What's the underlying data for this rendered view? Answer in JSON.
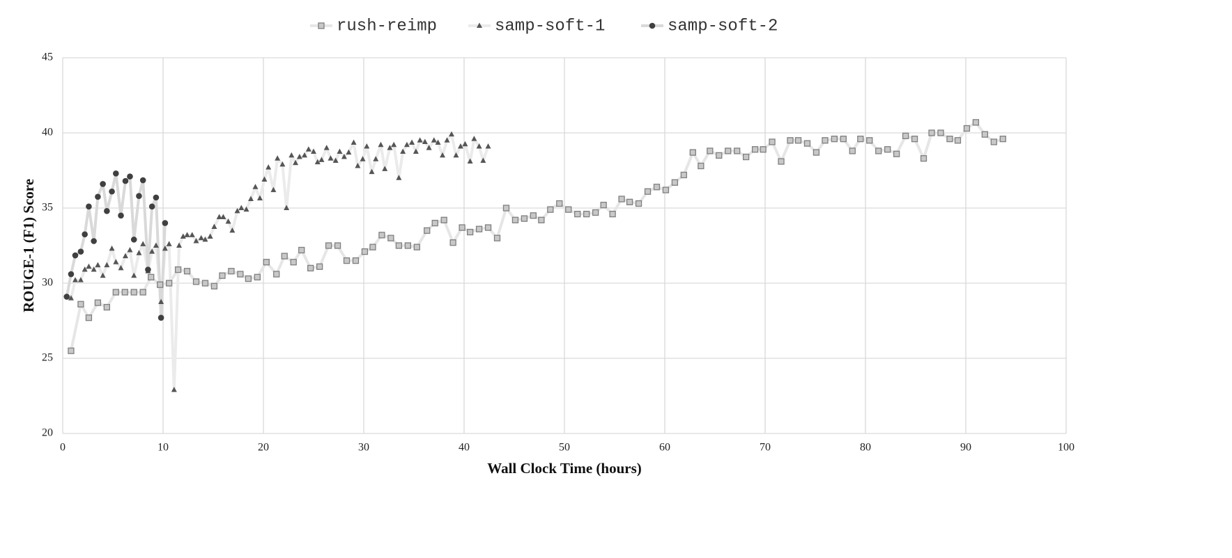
{
  "chart_data": {
    "type": "line",
    "xlabel": "Wall Clock Time (hours)",
    "ylabel": "ROUGE-1 (F1) Score",
    "xlim": [
      0,
      100
    ],
    "xticks": [
      0,
      10,
      20,
      30,
      40,
      50,
      60,
      70,
      80,
      90,
      100
    ],
    "ylim": [
      20,
      45
    ],
    "yticks": [
      20,
      25,
      30,
      35,
      40,
      45
    ],
    "grid": true,
    "legend": "top",
    "series": [
      {
        "name": "rush-reimp",
        "color": "#e6e6e6",
        "marker": "square",
        "marker_color": "#c8c8c8",
        "x": [
          0.83,
          1.8,
          2.6,
          3.5,
          4.4,
          5.3,
          6.2,
          7.1,
          8.0,
          8.8,
          9.7,
          10.6,
          11.5,
          12.4,
          13.3,
          14.2,
          15.1,
          15.9,
          16.8,
          17.7,
          18.5,
          19.4,
          20.3,
          21.3,
          22.1,
          23.0,
          23.8,
          24.7,
          25.6,
          26.5,
          27.4,
          28.3,
          29.2,
          30.1,
          30.9,
          31.8,
          32.7,
          33.5,
          34.4,
          35.3,
          36.3,
          37.1,
          38.0,
          38.9,
          39.8,
          40.6,
          41.5,
          42.4,
          43.3,
          44.2,
          45.1,
          46.0,
          46.9,
          47.7,
          48.6,
          49.5,
          50.4,
          51.3,
          52.2,
          53.1,
          53.9,
          54.8,
          55.7,
          56.5,
          57.4,
          58.3,
          59.2,
          60.1,
          61.0,
          61.9,
          62.8,
          63.6,
          64.5,
          65.4,
          66.3,
          67.2,
          68.1,
          69.0,
          69.8,
          70.7,
          71.6,
          72.5,
          73.3,
          74.2,
          75.1,
          75.97,
          76.9,
          77.8,
          78.7,
          79.5,
          80.4,
          81.3,
          82.2,
          83.1,
          84.0,
          84.9,
          85.8,
          86.6,
          87.5,
          88.4,
          89.2,
          90.1,
          91.0,
          91.9,
          92.8,
          93.7
        ],
        "values": [
          25.5,
          28.6,
          27.7,
          28.7,
          28.4,
          29.4,
          29.4,
          29.4,
          29.4,
          30.4,
          29.9,
          30.0,
          30.9,
          30.8,
          30.1,
          30.0,
          29.8,
          30.5,
          30.8,
          30.6,
          30.3,
          30.4,
          31.4,
          30.6,
          31.8,
          31.4,
          32.2,
          31.0,
          31.1,
          32.5,
          32.5,
          31.5,
          31.5,
          32.1,
          32.4,
          33.2,
          33.0,
          32.5,
          32.5,
          32.4,
          33.5,
          34.0,
          34.2,
          32.7,
          33.7,
          33.4,
          33.6,
          33.7,
          33.0,
          35.0,
          34.2,
          34.3,
          34.5,
          34.2,
          34.9,
          35.3,
          34.9,
          34.6,
          34.6,
          34.7,
          35.2,
          34.6,
          35.6,
          35.4,
          35.3,
          36.1,
          36.4,
          36.2,
          36.7,
          37.2,
          38.7,
          37.8,
          38.8,
          38.5,
          38.8,
          38.8,
          38.4,
          38.9,
          38.9,
          39.4,
          38.1,
          39.5,
          39.5,
          39.3,
          38.7,
          39.5,
          39.6,
          39.6,
          38.8,
          39.6,
          39.5,
          38.8,
          38.9,
          38.6,
          39.8,
          39.6,
          38.3,
          40.0,
          40.0,
          39.6,
          39.5,
          40.3,
          40.7,
          39.9,
          39.4,
          39.6
        ]
      },
      {
        "name": "samp-soft-1",
        "color": "#ebebeb",
        "marker": "triangle",
        "marker_color": "#555555",
        "x": [
          0.83,
          1.25,
          1.8,
          2.2,
          2.6,
          3.1,
          3.5,
          4.0,
          4.4,
          4.9,
          5.3,
          5.8,
          6.25,
          6.7,
          7.1,
          7.6,
          8.0,
          8.5,
          8.9,
          9.3,
          9.8,
          10.2,
          10.6,
          11.1,
          11.6,
          12.0,
          12.4,
          12.9,
          13.3,
          13.8,
          14.2,
          14.7,
          15.1,
          15.6,
          16.0,
          16.5,
          16.9,
          17.4,
          17.8,
          18.3,
          18.75,
          19.2,
          19.65,
          20.1,
          20.5,
          21.0,
          21.4,
          21.9,
          22.3,
          22.8,
          23.2,
          23.6,
          24.1,
          24.5,
          25.0,
          25.4,
          25.8,
          26.3,
          26.7,
          27.2,
          27.6,
          28.05,
          28.5,
          29.0,
          29.4,
          29.9,
          30.3,
          30.8,
          31.2,
          31.7,
          32.1,
          32.6,
          33.0,
          33.5,
          33.9,
          34.3,
          34.8,
          35.2,
          35.6,
          36.1,
          36.5,
          37.0,
          37.4,
          37.85,
          38.3,
          38.75,
          39.2,
          39.65,
          40.1,
          40.6,
          41.0,
          41.5,
          41.9,
          42.4
        ],
        "values": [
          29.0,
          30.2,
          30.2,
          30.9,
          31.1,
          30.9,
          31.2,
          30.5,
          31.2,
          32.3,
          31.4,
          31.0,
          31.8,
          32.2,
          30.5,
          32.0,
          32.6,
          30.8,
          32.1,
          32.5,
          28.75,
          32.3,
          32.6,
          22.9,
          32.5,
          33.1,
          33.2,
          33.2,
          32.8,
          33.0,
          32.9,
          33.1,
          33.75,
          34.4,
          34.4,
          34.1,
          33.5,
          34.8,
          35.0,
          34.9,
          35.6,
          36.4,
          35.65,
          36.9,
          37.7,
          36.2,
          38.3,
          37.9,
          35.0,
          38.5,
          38.0,
          38.4,
          38.5,
          38.9,
          38.75,
          38.05,
          38.2,
          39.0,
          38.3,
          38.15,
          38.75,
          38.4,
          38.7,
          39.35,
          37.8,
          38.25,
          39.1,
          37.4,
          38.25,
          39.2,
          37.6,
          39.0,
          39.2,
          37.0,
          38.75,
          39.2,
          39.35,
          38.75,
          39.5,
          39.4,
          39.0,
          39.5,
          39.35,
          38.5,
          39.5,
          39.9,
          38.5,
          39.1,
          39.25,
          38.1,
          39.6,
          39.1,
          38.15,
          39.1
        ]
      },
      {
        "name": "samp-soft-2",
        "color": "#d9d9d9",
        "marker": "circle",
        "marker_color": "#404040",
        "x": [
          0.4,
          0.83,
          1.25,
          1.8,
          2.2,
          2.6,
          3.1,
          3.5,
          4.0,
          4.4,
          4.9,
          5.3,
          5.8,
          6.25,
          6.7,
          7.1,
          7.6,
          8.0,
          8.5,
          8.9,
          9.3,
          9.8,
          10.2
        ],
        "values": [
          29.1,
          30.6,
          31.85,
          32.1,
          33.25,
          35.1,
          32.8,
          35.75,
          36.6,
          34.8,
          36.1,
          37.3,
          34.5,
          36.8,
          37.1,
          32.9,
          35.8,
          36.85,
          30.9,
          35.1,
          35.7,
          27.7,
          34.0
        ]
      }
    ]
  }
}
